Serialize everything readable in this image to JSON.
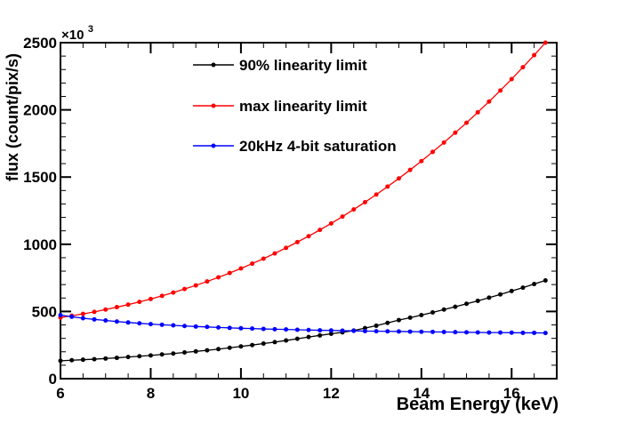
{
  "figure": {
    "background": "#ffffff",
    "frame_color": "#000000"
  },
  "chart_data": {
    "type": "line",
    "title": "",
    "xlabel": "Beam Energy (keV)",
    "ylabel": "flux (count/pix/s)",
    "y_scale_exponent": {
      "base": "×10",
      "power": "3"
    },
    "xlim": [
      6,
      17
    ],
    "ylim": [
      0,
      2500
    ],
    "x_major_ticks": [
      6,
      8,
      10,
      12,
      14,
      16
    ],
    "x_minor_step": 0.5,
    "y_major_ticks": [
      0,
      500,
      1000,
      1500,
      2000,
      2500
    ],
    "y_minor_step": 100,
    "grid": false,
    "legend_position": "top-left-inside",
    "x": [
      6,
      6.25,
      6.5,
      6.75,
      7,
      7.25,
      7.5,
      7.75,
      8,
      8.25,
      8.5,
      8.75,
      9,
      9.25,
      9.5,
      9.75,
      10,
      10.25,
      10.5,
      10.75,
      11,
      11.25,
      11.5,
      11.75,
      12,
      12.25,
      12.5,
      12.75,
      13,
      13.25,
      13.5,
      13.75,
      14,
      14.25,
      14.5,
      14.75,
      15,
      15.25,
      15.5,
      15.75,
      16,
      16.25,
      16.5,
      16.75
    ],
    "series": [
      {
        "name": "90% linearity limit",
        "color": "#000000",
        "marker": "filled-circle",
        "values": [
          133,
          137,
          141,
          145,
          150,
          155,
          161,
          167,
          173,
          180,
          187,
          195,
          203,
          211,
          220,
          230,
          240,
          250,
          261,
          272,
          284,
          297,
          310,
          322,
          334,
          345,
          358,
          376,
          394,
          415,
          436,
          454,
          473,
          493,
          514,
          535,
          557,
          579,
          603,
          627,
          652,
          677,
          704,
          731
        ]
      },
      {
        "name": "max linearity limit",
        "color": "#ff0000",
        "marker": "filled-circle",
        "values": [
          455,
          468,
          482,
          497,
          514,
          532,
          551,
          571,
          593,
          616,
          641,
          667,
          694,
          723,
          754,
          786,
          820,
          856,
          893,
          932,
          973,
          1016,
          1060,
          1107,
          1155,
          1206,
          1259,
          1313,
          1370,
          1429,
          1490,
          1553,
          1619,
          1687,
          1757,
          1830,
          1904,
          1982,
          2062,
          2144,
          2229,
          2317,
          2407,
          2500
        ]
      },
      {
        "name": "20kHz 4-bit saturation",
        "color": "#0000ff",
        "marker": "filled-circle",
        "values": [
          473,
          461,
          450,
          441,
          433,
          425,
          418,
          412,
          406,
          401,
          397,
          392,
          388,
          385,
          381,
          378,
          375,
          373,
          370,
          368,
          366,
          364,
          362,
          360,
          359,
          357,
          356,
          354,
          353,
          352,
          351,
          350,
          349,
          348,
          347,
          346,
          345,
          344,
          343,
          343,
          342,
          341,
          341,
          340
        ]
      }
    ]
  }
}
